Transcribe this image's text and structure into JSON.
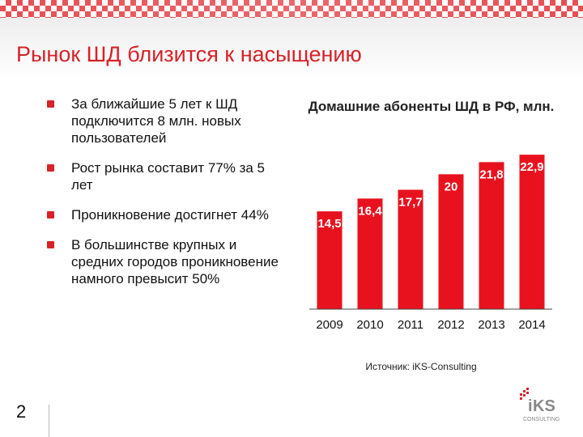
{
  "header": {
    "title": "Рынок ШД близится к насыщению"
  },
  "bullets": [
    "За ближайшие 5 лет к ШД подключится 8 млн. новых пользователей",
    "Рост рынка составит 77% за 5 лет",
    "Проникновение достигнет 44%",
    "В большинстве крупных и средних городов проникновение намного превысит 50%"
  ],
  "chart_title": "Домашние абоненты ШД в РФ, млн.",
  "chart_data": {
    "type": "bar",
    "title": "Домашние абоненты ШД в РФ, млн.",
    "categories": [
      "2009",
      "2010",
      "2011",
      "2012",
      "2013",
      "2014"
    ],
    "values": [
      14.5,
      16.4,
      17.7,
      20,
      21.8,
      22.9
    ],
    "data_labels": [
      "14,5",
      "16,4",
      "17,7",
      "20",
      "21,8",
      "22,9"
    ],
    "ylim": [
      0,
      24
    ],
    "grid": false,
    "bar_color": "#e8121e"
  },
  "source": "Источник: iKS-Consulting",
  "page_number": "2",
  "logo": {
    "brand": "iKS",
    "tagline": "CONSULTING"
  },
  "colors": {
    "accent": "#d82128"
  }
}
